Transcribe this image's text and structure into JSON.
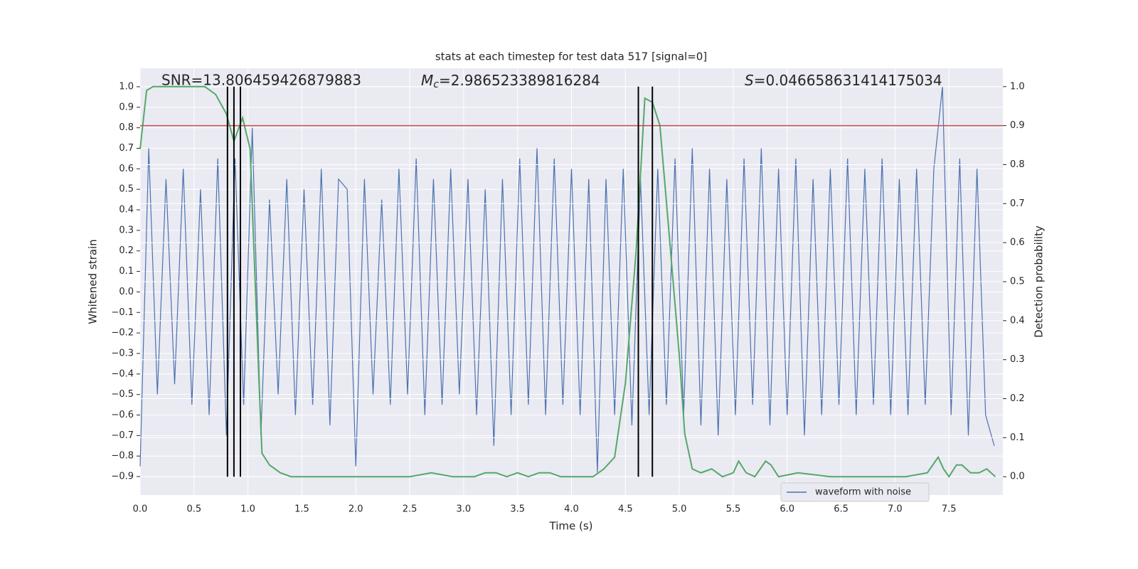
{
  "chart_data": {
    "type": "line",
    "title": "stats at each timestep for test data 517 [signal=0]",
    "xlabel": "Time (s)",
    "ylabel": "Whitened strain",
    "y2label": "Detection probability",
    "annotations": [
      {
        "text": "SNR=13.806459426879883"
      },
      {
        "symbol": "M",
        "subscript": "c",
        "text": "=2.986523389816284"
      },
      {
        "symbol": "S",
        "text": "=0.046658631414175034"
      }
    ],
    "xlim": [
      0,
      8.0
    ],
    "ylim": [
      -0.99,
      1.09
    ],
    "y2lim": [
      -0.047,
      1.047
    ],
    "xticks": [
      {
        "value": 0,
        "label": "0.0"
      },
      0.5,
      {
        "value": 1,
        "label": "1.0"
      },
      1.5,
      {
        "value": 2,
        "label": "2.0"
      },
      2.5,
      {
        "value": 3,
        "label": "3.0"
      },
      3.5,
      {
        "value": 4,
        "label": "4.0"
      },
      4.5,
      {
        "value": 5,
        "label": "5.0"
      },
      5.5,
      {
        "value": 6,
        "label": "6.0"
      },
      6.5,
      {
        "value": 7,
        "label": "7.0"
      },
      7.5
    ],
    "yticks": [
      {
        "value": -0.9,
        "label": "−0.9"
      },
      {
        "value": -0.8,
        "label": "−0.8"
      },
      {
        "value": -0.7,
        "label": "−0.7"
      },
      {
        "value": -0.6,
        "label": "−0.6"
      },
      {
        "value": -0.5,
        "label": "−0.5"
      },
      {
        "value": -0.4,
        "label": "−0.4"
      },
      {
        "value": -0.3,
        "label": "−0.3"
      },
      {
        "value": -0.2,
        "label": "−0.2"
      },
      {
        "value": -0.1,
        "label": "−0.1"
      },
      {
        "value": 0,
        "label": "0.0"
      },
      0.1,
      0.2,
      0.3,
      0.4,
      0.5,
      0.6,
      0.7,
      0.8,
      0.9,
      {
        "value": 1,
        "label": "1.0"
      }
    ],
    "y2ticks": [
      {
        "value": 0,
        "label": "0.0"
      },
      0.1,
      0.2,
      0.3,
      0.4,
      0.5,
      0.6,
      0.7,
      0.8,
      0.9,
      {
        "value": 1,
        "label": "1.0"
      }
    ],
    "grid": true,
    "legend": "lower right",
    "series": [
      {
        "name": "waveform with noise",
        "color": "#4c72b0",
        "x": [
          0,
          0.08,
          0.16,
          0.24,
          0.32,
          0.4,
          0.48,
          0.56,
          0.64,
          0.72,
          0.8,
          0.88,
          0.96,
          1.04,
          1.12,
          1.2,
          1.28,
          1.36,
          1.44,
          1.52,
          1.6,
          1.68,
          1.76,
          1.84,
          1.92,
          2.0,
          2.08,
          2.16,
          2.24,
          2.32,
          2.4,
          2.48,
          2.56,
          2.64,
          2.72,
          2.8,
          2.88,
          2.96,
          3.04,
          3.12,
          3.2,
          3.28,
          3.36,
          3.44,
          3.52,
          3.6,
          3.68,
          3.76,
          3.84,
          3.92,
          4.0,
          4.08,
          4.16,
          4.24,
          4.32,
          4.4,
          4.48,
          4.56,
          4.64,
          4.72,
          4.8,
          4.88,
          4.96,
          5.04,
          5.12,
          5.2,
          5.28,
          5.36,
          5.44,
          5.52,
          5.6,
          5.68,
          5.76,
          5.84,
          5.92,
          6.0,
          6.08,
          6.16,
          6.24,
          6.32,
          6.4,
          6.48,
          6.56,
          6.64,
          6.72,
          6.8,
          6.88,
          6.96,
          7.04,
          7.12,
          7.2,
          7.28,
          7.36,
          7.44,
          7.52,
          7.6,
          7.68,
          7.76,
          7.84,
          7.92
        ],
        "values": [
          -0.85,
          0.7,
          -0.5,
          0.55,
          -0.45,
          0.6,
          -0.55,
          0.5,
          -0.6,
          0.65,
          -0.7,
          0.65,
          -0.55,
          0.8,
          -0.7,
          0.45,
          -0.5,
          0.55,
          -0.6,
          0.5,
          -0.55,
          0.6,
          -0.65,
          0.55,
          0.5,
          -0.85,
          0.55,
          -0.5,
          0.45,
          -0.55,
          0.6,
          -0.5,
          0.65,
          -0.6,
          0.55,
          -0.55,
          0.6,
          -0.5,
          0.55,
          -0.6,
          0.5,
          -0.75,
          0.55,
          -0.6,
          0.65,
          -0.55,
          0.7,
          -0.6,
          0.65,
          -0.55,
          0.6,
          -0.6,
          0.55,
          -0.88,
          0.55,
          -0.6,
          0.6,
          -0.65,
          0.55,
          -0.6,
          0.6,
          -0.55,
          0.65,
          -0.6,
          0.7,
          -0.65,
          0.6,
          -0.7,
          0.55,
          -0.6,
          0.65,
          -0.55,
          0.7,
          -0.65,
          0.6,
          -0.6,
          0.65,
          -0.7,
          0.55,
          -0.6,
          0.6,
          -0.55,
          0.65,
          -0.6,
          0.6,
          -0.55,
          0.65,
          -0.6,
          0.55,
          -0.6,
          0.6,
          -0.55,
          0.6,
          1.0,
          -0.6,
          0.65,
          -0.7,
          0.6,
          -0.6,
          -0.75
        ]
      },
      {
        "color": "#55a868",
        "axis": "y2",
        "x": [
          0,
          0.06,
          0.12,
          0.2,
          0.3,
          0.4,
          0.5,
          0.6,
          0.7,
          0.8,
          0.87,
          0.95,
          1.02,
          1.1,
          1.13,
          1.2,
          1.3,
          1.4,
          1.5,
          1.7,
          1.9,
          2.1,
          2.3,
          2.5,
          2.7,
          2.9,
          3.1,
          3.2,
          3.3,
          3.4,
          3.5,
          3.6,
          3.7,
          3.8,
          3.9,
          4.0,
          4.1,
          4.2,
          4.3,
          4.4,
          4.5,
          4.6,
          4.68,
          4.75,
          4.82,
          4.9,
          5.0,
          5.05,
          5.12,
          5.2,
          5.3,
          5.4,
          5.5,
          5.55,
          5.62,
          5.7,
          5.8,
          5.85,
          5.92,
          6.1,
          6.4,
          6.8,
          7.1,
          7.3,
          7.4,
          7.45,
          7.5,
          7.57,
          7.62,
          7.7,
          7.78,
          7.85,
          7.93
        ],
        "values": [
          0.84,
          0.99,
          1.0,
          1.0,
          1.0,
          1.0,
          1.0,
          1.0,
          0.98,
          0.93,
          0.86,
          0.92,
          0.84,
          0.26,
          0.06,
          0.03,
          0.01,
          0.0,
          0.0,
          0.0,
          0.0,
          0.0,
          0.0,
          0.0,
          0.01,
          0.0,
          0.0,
          0.01,
          0.01,
          0.0,
          0.01,
          0.0,
          0.01,
          0.01,
          0.0,
          0.0,
          0.0,
          0.0,
          0.02,
          0.05,
          0.24,
          0.58,
          0.97,
          0.96,
          0.9,
          0.64,
          0.31,
          0.11,
          0.02,
          0.01,
          0.02,
          0.0,
          0.01,
          0.04,
          0.01,
          0.0,
          0.04,
          0.03,
          0.0,
          0.01,
          0.0,
          0.0,
          0.0,
          0.01,
          0.05,
          0.02,
          0.0,
          0.03,
          0.03,
          0.01,
          0.01,
          0.02,
          0.0
        ]
      }
    ],
    "threshold": {
      "value": 0.9,
      "axis": "y2",
      "color": "#c44e52"
    },
    "vlines": {
      "x": [
        0.81,
        0.87,
        0.93,
        4.62,
        4.75
      ],
      "y2range": [
        0,
        1
      ],
      "color": "#000000"
    }
  }
}
